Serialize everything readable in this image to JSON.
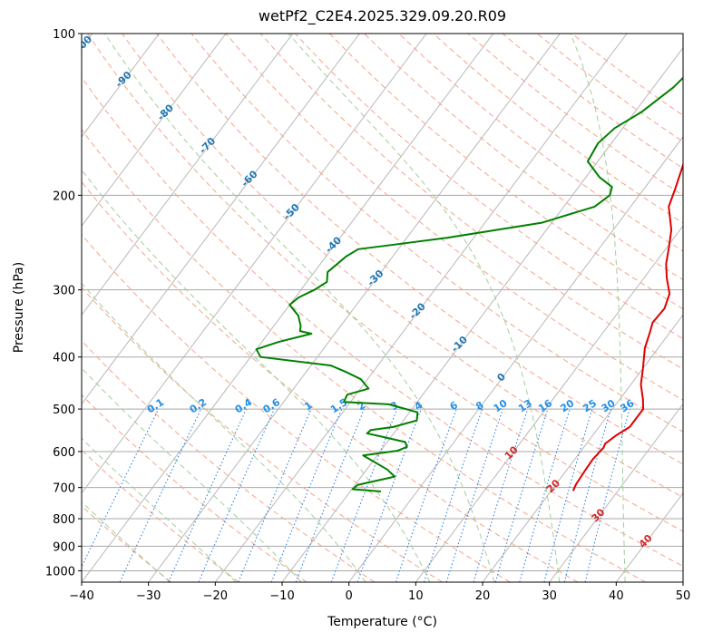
{
  "chart_data": {
    "type": "line",
    "title": "wetPf2_C2E4.2025.329.09.20.R09",
    "xlabel": "Temperature (°C)",
    "ylabel": "Pressure (hPa)",
    "xlim": [
      -40,
      50
    ],
    "ylim": [
      1050,
      100
    ],
    "y_scale": "log",
    "x_ticks": [
      -40,
      -30,
      -20,
      -10,
      0,
      10,
      20,
      30,
      40,
      50
    ],
    "y_ticks": [
      1000,
      900,
      800,
      700,
      600,
      500,
      400,
      300,
      200,
      100
    ],
    "grid": true,
    "series": [
      {
        "role": "temperature",
        "color": "#e00000",
        "points": [
          [
            23.3,
            710
          ],
          [
            23.0,
            690
          ],
          [
            22.8,
            650
          ],
          [
            22.7,
            620
          ],
          [
            23.0,
            590
          ],
          [
            22.8,
            580
          ],
          [
            23.5,
            560
          ],
          [
            24.6,
            540
          ],
          [
            24.6,
            500
          ],
          [
            23.5,
            480
          ],
          [
            21.5,
            450
          ],
          [
            20.0,
            420
          ],
          [
            18.0,
            385
          ],
          [
            17.0,
            360
          ],
          [
            16.3,
            345
          ],
          [
            16.5,
            325
          ],
          [
            15.6,
            305
          ],
          [
            13.4,
            285
          ],
          [
            11.7,
            268
          ],
          [
            10.3,
            250
          ],
          [
            8.7,
            232
          ],
          [
            5.7,
            210
          ],
          [
            4.7,
            195
          ],
          [
            3.2,
            176
          ],
          [
            1.6,
            160
          ],
          [
            0.1,
            147
          ],
          [
            -0.7,
            136
          ],
          [
            -0.3,
            124
          ],
          [
            0.3,
            112
          ],
          [
            1.0,
            104
          ],
          [
            1.7,
            100
          ]
        ]
      },
      {
        "role": "dewpoint",
        "color": "#008000",
        "points": [
          [
            -5.4,
            712
          ],
          [
            -9.9,
            705
          ],
          [
            -9.6,
            692
          ],
          [
            -5.0,
            668
          ],
          [
            -6.9,
            648
          ],
          [
            -12.1,
            610
          ],
          [
            -7.5,
            598
          ],
          [
            -6.5,
            588
          ],
          [
            -7.3,
            576
          ],
          [
            -11.0,
            564
          ],
          [
            -14.0,
            555
          ],
          [
            -13.8,
            547
          ],
          [
            -10.8,
            540
          ],
          [
            -8.0,
            525
          ],
          [
            -8.8,
            507
          ],
          [
            -14.0,
            490
          ],
          [
            -21.0,
            485
          ],
          [
            -21.3,
            470
          ],
          [
            -18.8,
            458
          ],
          [
            -21.0,
            440
          ],
          [
            -24.4,
            425
          ],
          [
            -27.0,
            415
          ],
          [
            -38.5,
            400
          ],
          [
            -40.0,
            387
          ],
          [
            -37.5,
            375
          ],
          [
            -33.5,
            362
          ],
          [
            -35.5,
            358
          ],
          [
            -36.0,
            350
          ],
          [
            -37.5,
            335
          ],
          [
            -40.0,
            320
          ],
          [
            -39.5,
            310
          ],
          [
            -38.0,
            300
          ],
          [
            -37.0,
            290
          ],
          [
            -38.0,
            278
          ],
          [
            -37.0,
            260
          ],
          [
            -36.0,
            252
          ],
          [
            -32.0,
            248
          ],
          [
            -24.0,
            240
          ],
          [
            -11.5,
            225
          ],
          [
            -5.4,
            210
          ],
          [
            -4.4,
            200
          ],
          [
            -5.0,
            193
          ],
          [
            -8.0,
            185
          ],
          [
            -11.5,
            173
          ],
          [
            -12.0,
            160
          ],
          [
            -11.2,
            150
          ],
          [
            -9.0,
            140
          ],
          [
            -7.0,
            126
          ],
          [
            -6.0,
            113
          ],
          [
            -4.0,
            105
          ],
          [
            -3.0,
            100
          ]
        ]
      }
    ],
    "dry_adiabat_labels": [
      -100,
      -90,
      -80,
      -70,
      -60,
      -50,
      -40,
      -30,
      -20,
      -10,
      0,
      10,
      20,
      30,
      40
    ],
    "mixing_ratio_labels": [
      "0.1",
      "0.2",
      "0.4",
      "0.6",
      "1",
      "1.5",
      "2",
      "3",
      "4",
      "6",
      "8",
      "10",
      "13",
      "16",
      "20",
      "25",
      "30",
      "36"
    ],
    "colors": {
      "isotherm": "#b8b8b8",
      "isobar": "#a8a8a8",
      "dry_adiabat": "#f4a58a",
      "moist_adiabat": "#9fd09a",
      "mixing_ratio": "#1f77e4",
      "dry_label": "#1f77b4",
      "moist_label": "#d62728",
      "mixing_label": "#1f8fe8"
    }
  }
}
